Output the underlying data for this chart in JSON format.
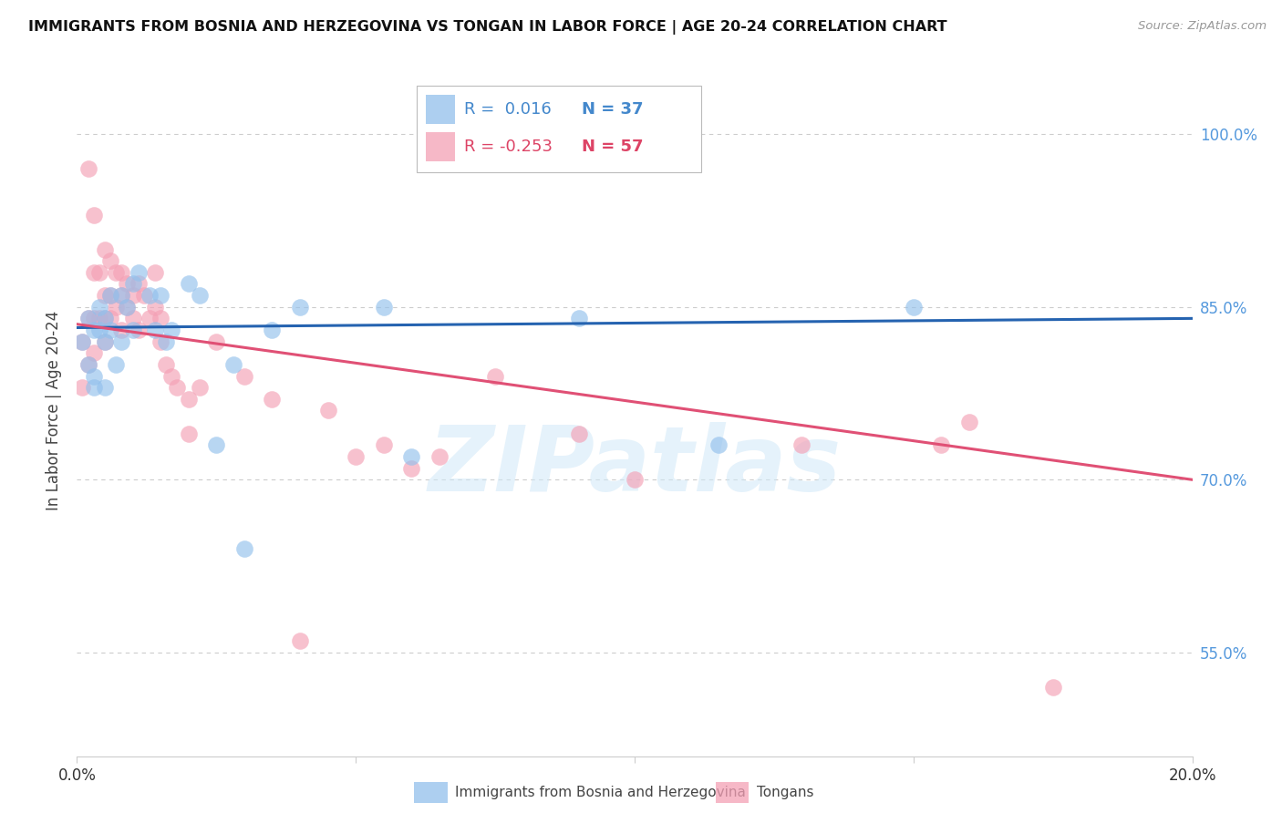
{
  "title": "IMMIGRANTS FROM BOSNIA AND HERZEGOVINA VS TONGAN IN LABOR FORCE | AGE 20-24 CORRELATION CHART",
  "source": "Source: ZipAtlas.com",
  "ylabel": "In Labor Force | Age 20-24",
  "yticks": [
    0.55,
    0.7,
    0.85,
    1.0
  ],
  "ytick_labels": [
    "55.0%",
    "70.0%",
    "85.0%",
    "100.0%"
  ],
  "xlim": [
    0.0,
    0.2
  ],
  "ylim": [
    0.46,
    1.06
  ],
  "bosnia_R": 0.016,
  "bosnia_N": 37,
  "tongan_R": -0.253,
  "tongan_N": 57,
  "bosnia_color": "#92C0EC",
  "tongan_color": "#F4A0B5",
  "bosnia_line_color": "#2563B0",
  "tongan_line_color": "#E05075",
  "watermark": "ZIPatlas",
  "bosnia_line_x0": 0.0,
  "bosnia_line_y0": 0.832,
  "bosnia_line_x1": 0.2,
  "bosnia_line_y1": 0.84,
  "tongan_line_x0": 0.0,
  "tongan_line_y0": 0.835,
  "tongan_line_x1": 0.2,
  "tongan_line_y1": 0.7,
  "bosnia_points_x": [
    0.001,
    0.002,
    0.002,
    0.003,
    0.003,
    0.004,
    0.004,
    0.005,
    0.005,
    0.006,
    0.006,
    0.007,
    0.008,
    0.009,
    0.01,
    0.011,
    0.013,
    0.014,
    0.015,
    0.016,
    0.017,
    0.02,
    0.022,
    0.025,
    0.028,
    0.03,
    0.035,
    0.04,
    0.055,
    0.06,
    0.09,
    0.115,
    0.15,
    0.003,
    0.005,
    0.008,
    0.01
  ],
  "bosnia_points_y": [
    0.82,
    0.84,
    0.8,
    0.83,
    0.79,
    0.85,
    0.83,
    0.84,
    0.82,
    0.86,
    0.83,
    0.8,
    0.86,
    0.85,
    0.87,
    0.88,
    0.86,
    0.83,
    0.86,
    0.82,
    0.83,
    0.87,
    0.86,
    0.73,
    0.8,
    0.64,
    0.83,
    0.85,
    0.85,
    0.72,
    0.84,
    0.73,
    0.85,
    0.78,
    0.78,
    0.82,
    0.83
  ],
  "tongan_points_x": [
    0.001,
    0.001,
    0.002,
    0.002,
    0.002,
    0.003,
    0.003,
    0.003,
    0.003,
    0.004,
    0.004,
    0.005,
    0.005,
    0.005,
    0.005,
    0.006,
    0.006,
    0.006,
    0.007,
    0.007,
    0.008,
    0.008,
    0.008,
    0.009,
    0.009,
    0.01,
    0.01,
    0.011,
    0.011,
    0.012,
    0.013,
    0.014,
    0.014,
    0.015,
    0.015,
    0.016,
    0.017,
    0.018,
    0.02,
    0.02,
    0.022,
    0.025,
    0.03,
    0.035,
    0.04,
    0.045,
    0.05,
    0.055,
    0.06,
    0.065,
    0.075,
    0.09,
    0.1,
    0.13,
    0.155,
    0.16,
    0.175
  ],
  "tongan_points_y": [
    0.82,
    0.78,
    0.97,
    0.84,
    0.8,
    0.93,
    0.88,
    0.84,
    0.81,
    0.88,
    0.84,
    0.9,
    0.86,
    0.84,
    0.82,
    0.89,
    0.86,
    0.84,
    0.88,
    0.85,
    0.88,
    0.86,
    0.83,
    0.87,
    0.85,
    0.86,
    0.84,
    0.87,
    0.83,
    0.86,
    0.84,
    0.88,
    0.85,
    0.84,
    0.82,
    0.8,
    0.79,
    0.78,
    0.77,
    0.74,
    0.78,
    0.82,
    0.79,
    0.77,
    0.56,
    0.76,
    0.72,
    0.73,
    0.71,
    0.72,
    0.79,
    0.74,
    0.7,
    0.73,
    0.73,
    0.75,
    0.52
  ]
}
